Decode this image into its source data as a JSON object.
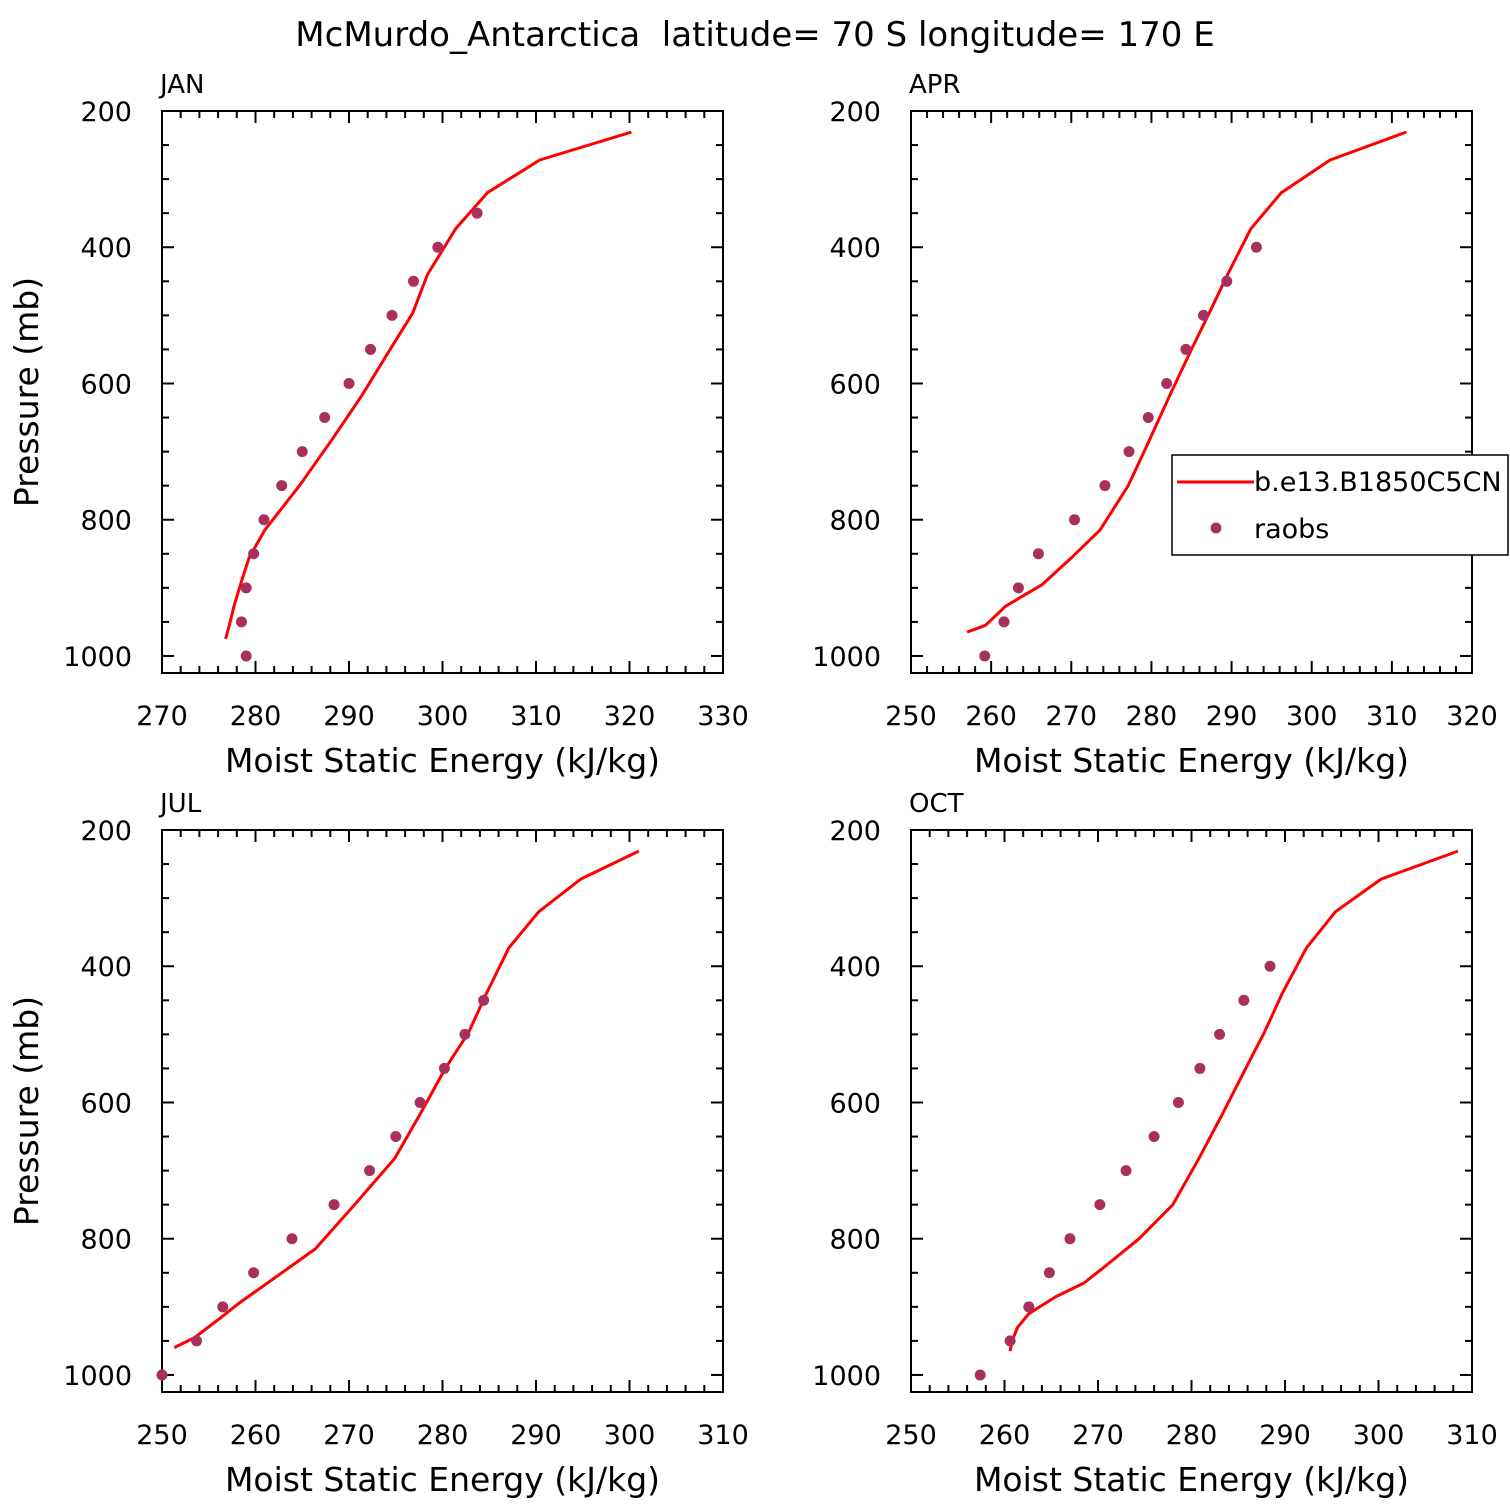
{
  "figure": {
    "title": "McMurdo_Antarctica  latitude= 70 S longitude= 170 E",
    "colors": {
      "model": "#ff0000",
      "obs": "#a9305e",
      "axes": "#000000"
    }
  },
  "legend": {
    "model_label": "b.e13.B1850C5CN",
    "obs_label": "raobs",
    "location": "right side of APR panel"
  },
  "chart_data": [
    {
      "type": "line",
      "title": "JAN",
      "xlabel": "Moist Static Energy (kJ/kg)",
      "ylabel": "Pressure (mb)",
      "xlim": [
        270,
        330
      ],
      "ylim": [
        1025,
        200
      ],
      "xticks": [
        270,
        280,
        290,
        300,
        310,
        320,
        330
      ],
      "yticks": [
        200,
        400,
        600,
        800,
        1000
      ],
      "yticklabels": [
        "200",
        "400",
        "600",
        "800",
        "1000"
      ],
      "series": [
        {
          "name": "b.e13.B1850C5CN",
          "kind": "line",
          "x": [
            320.2,
            310.4,
            304.8,
            301.4,
            298.4,
            296.8,
            294.4,
            291.4,
            288.2,
            284.7,
            281.0,
            279.3,
            278.4,
            277.7,
            277.2,
            276.8
          ],
          "y": [
            231,
            272,
            320,
            373,
            440,
            497,
            550,
            617,
            682,
            750,
            815,
            856,
            895,
            927,
            955,
            975
          ]
        },
        {
          "name": "raobs",
          "kind": "scatter",
          "x": [
            303.7,
            299.5,
            296.9,
            294.6,
            292.3,
            290.0,
            287.4,
            285.0,
            282.8,
            280.9,
            279.8,
            279.0,
            278.5,
            279.0
          ],
          "y": [
            350,
            400,
            450,
            500,
            550,
            600,
            650,
            700,
            750,
            800,
            850,
            900,
            950,
            1000
          ]
        }
      ]
    },
    {
      "type": "line",
      "title": "APR",
      "xlabel": "Moist Static Energy (kJ/kg)",
      "ylabel": "",
      "xlim": [
        250,
        320
      ],
      "ylim": [
        1025,
        200
      ],
      "xticks": [
        250,
        260,
        270,
        280,
        290,
        300,
        310,
        320
      ],
      "yticks": [
        200,
        400,
        600,
        800,
        1000
      ],
      "yticklabels": [
        "200",
        "400",
        "600",
        "800",
        "1000"
      ],
      "series": [
        {
          "name": "b.e13.B1850C5CN",
          "kind": "line",
          "x": [
            311.8,
            302.3,
            296.2,
            292.4,
            289.5,
            287.2,
            285.0,
            282.3,
            279.8,
            277.1,
            273.6,
            270.0,
            266.4,
            261.8,
            259.3,
            257.0
          ],
          "y": [
            231,
            272,
            320,
            373,
            440,
            497,
            550,
            617,
            682,
            750,
            815,
            856,
            895,
            927,
            955,
            965
          ]
        },
        {
          "name": "raobs",
          "kind": "scatter",
          "x": [
            293.1,
            289.4,
            286.5,
            284.3,
            281.9,
            279.6,
            277.2,
            274.2,
            270.4,
            265.9,
            263.4,
            261.6,
            259.2
          ],
          "y": [
            400,
            450,
            500,
            550,
            600,
            650,
            700,
            750,
            800,
            850,
            900,
            950,
            1000
          ]
        }
      ]
    },
    {
      "type": "line",
      "title": "JUL",
      "xlabel": "Moist Static Energy (kJ/kg)",
      "ylabel": "Pressure (mb)",
      "xlim": [
        250,
        310
      ],
      "ylim": [
        1025,
        200
      ],
      "xticks": [
        250,
        260,
        270,
        280,
        290,
        300,
        310
      ],
      "yticks": [
        200,
        400,
        600,
        800,
        1000
      ],
      "yticklabels": [
        "200",
        "400",
        "600",
        "800",
        "1000"
      ],
      "series": [
        {
          "name": "b.e13.B1850C5CN",
          "kind": "line",
          "x": [
            301.0,
            294.8,
            290.3,
            287.1,
            284.7,
            282.8,
            280.3,
            277.6,
            274.9,
            270.6,
            266.4,
            262.2,
            258.2,
            256.1,
            253.5,
            251.3
          ],
          "y": [
            231,
            272,
            320,
            373,
            440,
            497,
            550,
            617,
            682,
            750,
            815,
            856,
            895,
            918,
            945,
            960
          ]
        },
        {
          "name": "raobs",
          "kind": "scatter",
          "x": [
            284.4,
            282.4,
            280.2,
            277.6,
            275.0,
            272.2,
            268.4,
            263.9,
            259.8,
            256.5,
            253.7,
            250.0
          ],
          "y": [
            450,
            500,
            550,
            600,
            650,
            700,
            750,
            800,
            850,
            900,
            950,
            1000
          ]
        }
      ]
    },
    {
      "type": "line",
      "title": "OCT",
      "xlabel": "Moist Static Energy (kJ/kg)",
      "ylabel": "",
      "xlim": [
        250,
        310
      ],
      "ylim": [
        1025,
        200
      ],
      "xticks": [
        250,
        260,
        270,
        280,
        290,
        300,
        310
      ],
      "yticks": [
        200,
        400,
        600,
        800,
        1000
      ],
      "yticklabels": [
        "200",
        "400",
        "600",
        "800",
        "1000"
      ],
      "series": [
        {
          "name": "b.e13.B1850C5CN",
          "kind": "line",
          "x": [
            308.5,
            300.3,
            295.4,
            292.3,
            289.7,
            287.8,
            285.8,
            283.3,
            280.8,
            278.0,
            274.4,
            270.8,
            268.5,
            265.5,
            262.6,
            261.4,
            260.8,
            260.6
          ],
          "y": [
            231,
            272,
            320,
            373,
            440,
            497,
            550,
            617,
            682,
            750,
            800,
            840,
            865,
            885,
            910,
            930,
            950,
            965
          ]
        },
        {
          "name": "raobs",
          "kind": "scatter",
          "x": [
            288.4,
            285.6,
            283.0,
            280.9,
            278.6,
            276.0,
            273.0,
            270.2,
            267.0,
            264.8,
            262.6,
            260.6,
            257.4
          ],
          "y": [
            400,
            450,
            500,
            550,
            600,
            650,
            700,
            750,
            800,
            850,
            900,
            950,
            1000
          ]
        }
      ]
    }
  ]
}
